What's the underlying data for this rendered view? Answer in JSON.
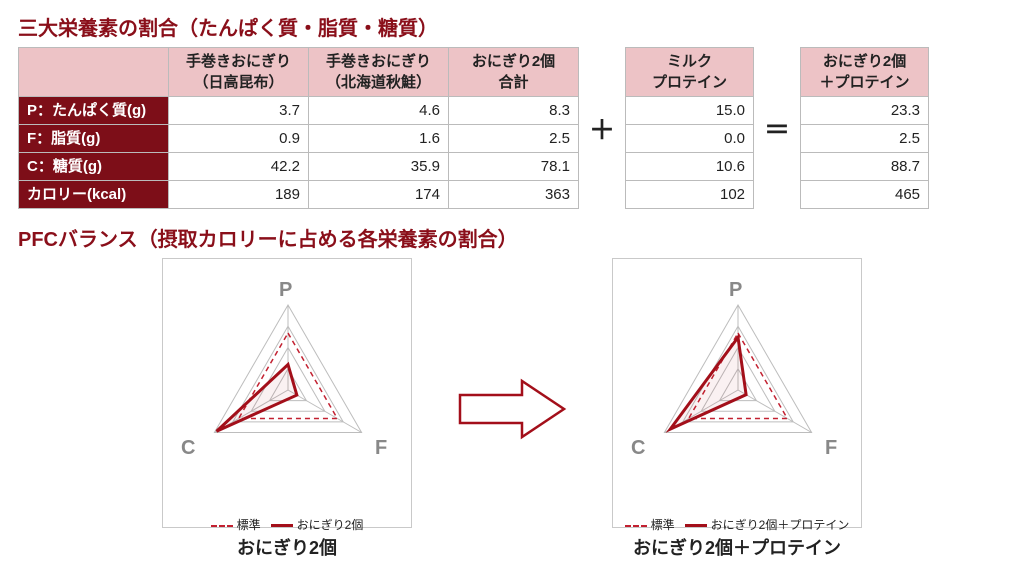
{
  "colors": {
    "title": "#8a0f1a",
    "col_header_bg": "#edc3c6",
    "row_header_bg": "#7d0e18",
    "border": "#bbbbbb",
    "radar_grid": "#bdbdbd",
    "radar_ref": "#c22030",
    "radar_data": "#a30f1a",
    "arrow_stroke": "#a30f1a",
    "axis_label": "#888888"
  },
  "section1_title": "三大栄養素の割合（たんぱく質・脂質・糖質）",
  "table": {
    "main_cols": [
      "手巻きおにぎり\n（日高昆布）",
      "手巻きおにぎり\n（北海道秋鮭）",
      "おにぎり2個\n合計"
    ],
    "side1_col": "ミルク\nプロテイン",
    "side2_col": "おにぎり2個\n＋プロテイン",
    "rows": [
      {
        "label": "P：たんぱく質(g)",
        "main": [
          "3.7",
          "4.6",
          "8.3"
        ],
        "side1": "15.0",
        "side2": "23.3"
      },
      {
        "label": "F：脂質(g)",
        "main": [
          "0.9",
          "1.6",
          "2.5"
        ],
        "side1": "0.0",
        "side2": "2.5"
      },
      {
        "label": "C：糖質(g)",
        "main": [
          "42.2",
          "35.9",
          "78.1"
        ],
        "side1": "10.6",
        "side2": "88.7"
      },
      {
        "label": "カロリー(kcal)",
        "main": [
          "189",
          "174",
          "363"
        ],
        "side1": "102",
        "side2": "465"
      }
    ],
    "op_plus": "＋",
    "op_eq": "＝"
  },
  "section2_title": "PFCバランス（摂取カロリーに占める各栄養素の割合）",
  "radar": {
    "size": 250,
    "grid_levels": 4,
    "axes": [
      "P",
      "F",
      "C"
    ],
    "angles_deg": [
      -90,
      30,
      150
    ],
    "reference": {
      "values": [
        0.67,
        0.67,
        0.67
      ],
      "style": "dashed",
      "color": "#c22030",
      "label": "標準"
    },
    "charts": [
      {
        "caption": "おにぎり2個",
        "legend_data": "おにぎり2個",
        "values": [
          0.3,
          0.12,
          0.97
        ]
      },
      {
        "caption": "おにぎり2個＋プロテイン",
        "legend_data": "おにぎり2個＋プロテイン",
        "values": [
          0.62,
          0.11,
          0.92
        ]
      }
    ],
    "axis_label_fontsize": 20,
    "line_width_ref": 1.5,
    "line_width_data": 3
  }
}
